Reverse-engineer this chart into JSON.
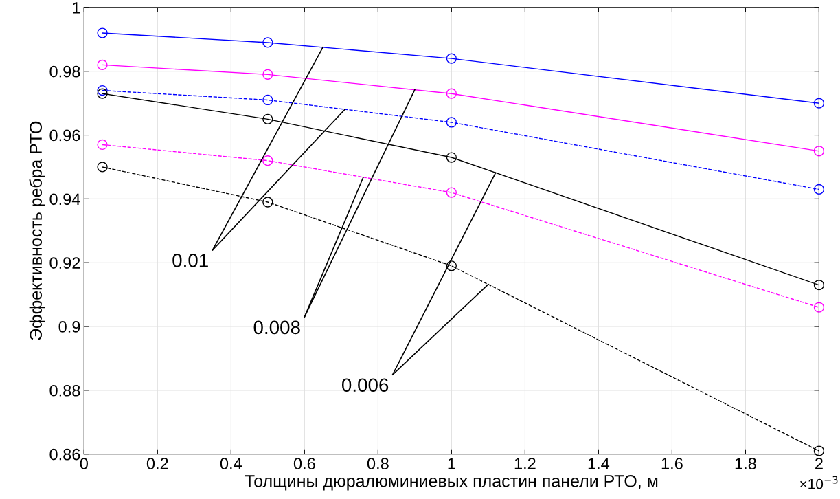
{
  "chart_data": {
    "type": "line",
    "xlabel": "Толщины дюралюминиевых пластин панели РТО, м",
    "ylabel": "Эффективность ребра РТО",
    "x": [
      0.05,
      0.5,
      1,
      2
    ],
    "series": [
      {
        "color": "#0000ff",
        "line_style": "solid",
        "values": [
          0.992,
          0.989,
          0.984,
          0.97
        ]
      },
      {
        "color": "#0000ff",
        "line_style": "dashed",
        "values": [
          0.974,
          0.971,
          0.964,
          0.943
        ]
      },
      {
        "color": "#ff00ff",
        "line_style": "solid",
        "values": [
          0.982,
          0.979,
          0.973,
          0.955
        ]
      },
      {
        "color": "#ff00ff",
        "line_style": "dashed",
        "values": [
          0.957,
          0.952,
          0.942,
          0.906
        ]
      },
      {
        "color": "#000000",
        "line_style": "solid",
        "values": [
          0.973,
          0.965,
          0.953,
          0.913
        ]
      },
      {
        "color": "#000000",
        "line_style": "dashed",
        "values": [
          0.95,
          0.939,
          0.919,
          0.861
        ]
      }
    ],
    "annotations": [
      {
        "text": "0.01",
        "x": 0.65,
        "y": 0.9875
      },
      {
        "text": "0.008",
        "x": 0.9,
        "y": 0.9742
      },
      {
        "text": "0.006",
        "x": 1.12,
        "y": 0.9482
      },
      "×10$^{−3}$"
    ],
    "xlim": [
      0,
      2
    ],
    "xticks": [
      0,
      0.2,
      0.4,
      0.6,
      0.8,
      1,
      1.2,
      1.4,
      1.6,
      1.8,
      2
    ],
    "ylim": [
      0.86,
      1
    ],
    "yticks": [
      0.86,
      0.88,
      0.9,
      0.92,
      0.94,
      0.96,
      0.98,
      1
    ],
    "grid": true,
    "marker": "circle"
  }
}
